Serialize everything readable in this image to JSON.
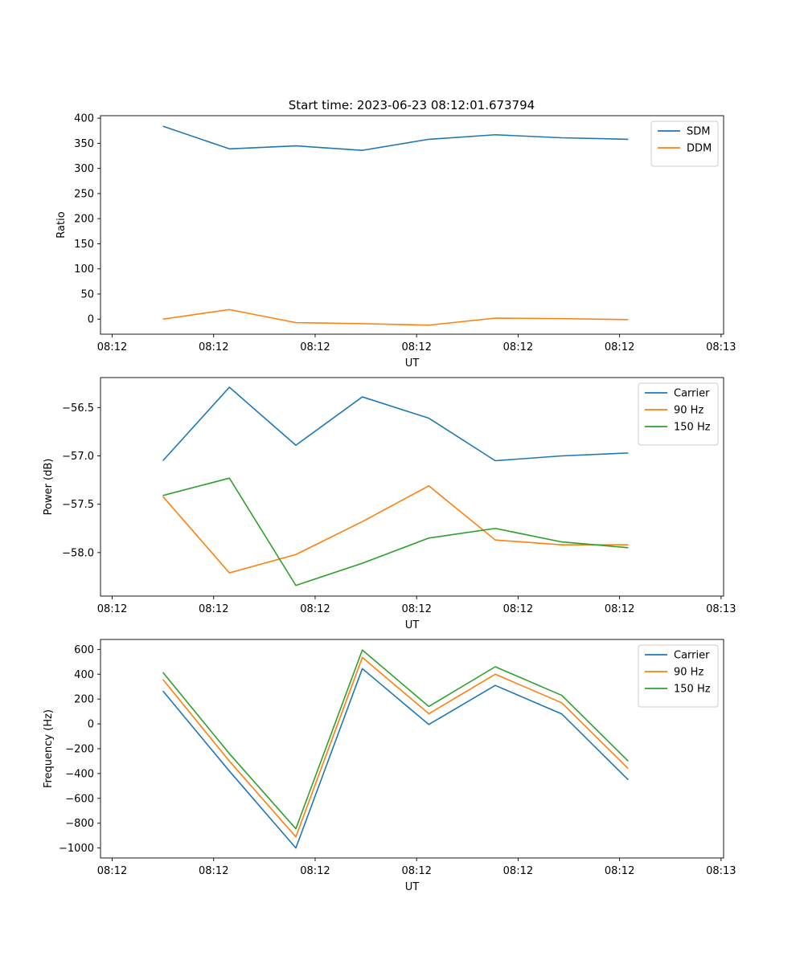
{
  "figure": {
    "title": "Start time: 2023-06-23 08:12:01.673794"
  },
  "chart_data": [
    {
      "type": "line",
      "xlabel": "UT",
      "ylabel": "Ratio",
      "x_tick_labels": [
        "08:12",
        "08:12",
        "08:12",
        "08:12",
        "08:12",
        "08:12",
        "08:13"
      ],
      "x_tick_values": [
        0,
        2,
        4,
        6,
        8,
        10,
        12
      ],
      "xlim": [
        -0.23,
        12.05
      ],
      "ylim": [
        -30,
        405
      ],
      "yticks": [
        0,
        50,
        100,
        150,
        200,
        250,
        300,
        350,
        400
      ],
      "ytick_labels": [
        "0",
        "50",
        "100",
        "150",
        "200",
        "250",
        "300",
        "350",
        "400"
      ],
      "legend_loc": "upper right",
      "x": [
        1,
        2.31,
        3.62,
        4.93,
        6.24,
        7.55,
        8.86,
        10.17
      ],
      "series": [
        {
          "name": "SDM",
          "color": "#1f77b4",
          "values": [
            384,
            339,
            345,
            336,
            358,
            367,
            361,
            358
          ]
        },
        {
          "name": "DDM",
          "color": "#ff7f0e",
          "values": [
            0,
            19,
            -7,
            -9,
            -12,
            2,
            1,
            -1
          ]
        }
      ]
    },
    {
      "type": "line",
      "xlabel": "UT",
      "ylabel": "Power (dB)",
      "x_tick_labels": [
        "08:12",
        "08:12",
        "08:12",
        "08:12",
        "08:12",
        "08:12",
        "08:13"
      ],
      "x_tick_values": [
        0,
        2,
        4,
        6,
        8,
        10,
        12
      ],
      "xlim": [
        -0.23,
        12.05
      ],
      "ylim": [
        -58.45,
        -56.19
      ],
      "yticks": [
        -58.0,
        -57.5,
        -57.0,
        -56.5
      ],
      "ytick_labels": [
        "−58.0",
        "−57.5",
        "−57.0",
        "−56.5"
      ],
      "legend_loc": "upper right",
      "x": [
        1,
        2.31,
        3.62,
        4.93,
        6.24,
        7.55,
        8.86,
        10.17
      ],
      "series": [
        {
          "name": "Carrier",
          "color": "#1f77b4",
          "values": [
            -57.05,
            -56.29,
            -56.89,
            -56.39,
            -56.61,
            -57.05,
            -57.0,
            -56.97
          ]
        },
        {
          "name": "90 Hz",
          "color": "#ff7f0e",
          "values": [
            -57.42,
            -58.21,
            -58.02,
            -57.68,
            -57.31,
            -57.87,
            -57.92,
            -57.92
          ]
        },
        {
          "name": "150 Hz",
          "color": "#2ca02c",
          "values": [
            -57.41,
            -57.23,
            -58.34,
            -58.11,
            -57.85,
            -57.75,
            -57.89,
            -57.95
          ]
        }
      ]
    },
    {
      "type": "line",
      "xlabel": "UT",
      "ylabel": "Frequency (Hz)",
      "x_tick_labels": [
        "08:12",
        "08:12",
        "08:12",
        "08:12",
        "08:12",
        "08:12",
        "08:13"
      ],
      "x_tick_values": [
        0,
        2,
        4,
        6,
        8,
        10,
        12
      ],
      "xlim": [
        -0.23,
        12.05
      ],
      "ylim": [
        -1080,
        680
      ],
      "yticks": [
        -1000,
        -800,
        -600,
        -400,
        -200,
        0,
        200,
        400,
        600
      ],
      "ytick_labels": [
        "−1000",
        "−800",
        "−600",
        "−400",
        "−200",
        "0",
        "200",
        "400",
        "600"
      ],
      "legend_loc": "upper right",
      "x": [
        1,
        2.31,
        3.62,
        4.93,
        6.24,
        7.55,
        8.86,
        10.17
      ],
      "series": [
        {
          "name": "Carrier",
          "color": "#1f77b4",
          "values": [
            265,
            -380,
            -1000,
            445,
            -5,
            310,
            80,
            -450
          ]
        },
        {
          "name": "90 Hz",
          "color": "#ff7f0e",
          "values": [
            358,
            -300,
            -910,
            535,
            82,
            400,
            170,
            -360
          ]
        },
        {
          "name": "150 Hz",
          "color": "#2ca02c",
          "values": [
            415,
            -240,
            -845,
            595,
            140,
            460,
            230,
            -300
          ]
        }
      ]
    }
  ]
}
